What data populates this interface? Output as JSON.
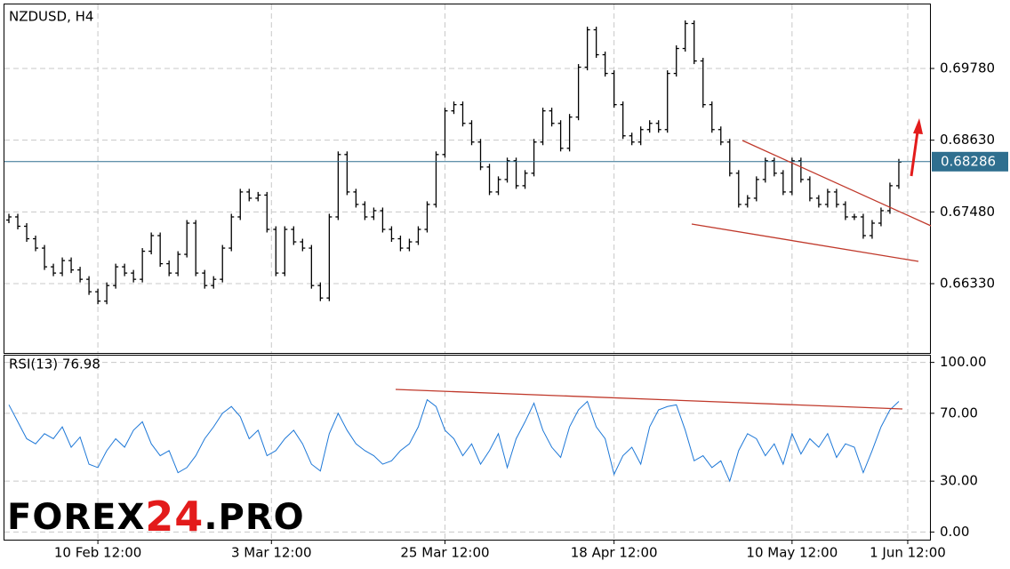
{
  "chart_data": [
    {
      "type": "ohlc",
      "title": "NZDUSD, H4",
      "color": "#000000",
      "grid": true,
      "open": [
        0.6735,
        0.674,
        0.6725,
        0.6705,
        0.669,
        0.666,
        0.665,
        0.667,
        0.6655,
        0.664,
        0.662,
        0.6605,
        0.663,
        0.666,
        0.665,
        0.664,
        0.6685,
        0.671,
        0.6665,
        0.665,
        0.668,
        0.673,
        0.665,
        0.663,
        0.664,
        0.669,
        0.674,
        0.678,
        0.677,
        0.6775,
        0.672,
        0.665,
        0.672,
        0.67,
        0.669,
        0.663,
        0.661,
        0.674,
        0.684,
        0.678,
        0.676,
        0.674,
        0.675,
        0.672,
        0.6705,
        0.669,
        0.67,
        0.672,
        0.676,
        0.684,
        0.691,
        0.692,
        0.689,
        0.686,
        0.682,
        0.678,
        0.68,
        0.683,
        0.679,
        0.681,
        0.686,
        0.691,
        0.689,
        0.685,
        0.69,
        0.698,
        0.704,
        0.7,
        0.697,
        0.692,
        0.687,
        0.686,
        0.688,
        0.689,
        0.688,
        0.697,
        0.701,
        0.705,
        0.699,
        0.692,
        0.688,
        0.686,
        0.681,
        0.676,
        0.677,
        0.68,
        0.683,
        0.681,
        0.678,
        0.683,
        0.68,
        0.677,
        0.676,
        0.678,
        0.676,
        0.674,
        0.674,
        0.671,
        0.673,
        0.675,
        0.679
      ],
      "high": [
        0.6745,
        0.6745,
        0.673,
        0.671,
        0.6695,
        0.6665,
        0.6675,
        0.6675,
        0.666,
        0.6645,
        0.6625,
        0.6635,
        0.6665,
        0.6665,
        0.6655,
        0.669,
        0.6715,
        0.6715,
        0.667,
        0.6685,
        0.6735,
        0.6735,
        0.6655,
        0.6645,
        0.6695,
        0.6745,
        0.6785,
        0.6785,
        0.678,
        0.678,
        0.6725,
        0.6725,
        0.6725,
        0.6705,
        0.6695,
        0.6635,
        0.6745,
        0.6845,
        0.6845,
        0.6785,
        0.6765,
        0.6755,
        0.6755,
        0.6725,
        0.671,
        0.6705,
        0.6725,
        0.6765,
        0.6845,
        0.6915,
        0.6925,
        0.6925,
        0.6895,
        0.6865,
        0.6825,
        0.6805,
        0.6835,
        0.6835,
        0.6815,
        0.6865,
        0.6915,
        0.6915,
        0.6895,
        0.6905,
        0.6985,
        0.7045,
        0.7045,
        0.7005,
        0.6975,
        0.6925,
        0.6875,
        0.6885,
        0.6895,
        0.6895,
        0.6975,
        0.7015,
        0.7055,
        0.7055,
        0.6995,
        0.6925,
        0.6885,
        0.6865,
        0.6815,
        0.6775,
        0.6805,
        0.6835,
        0.6835,
        0.6815,
        0.6835,
        0.6835,
        0.6805,
        0.6775,
        0.6785,
        0.6785,
        0.6765,
        0.6745,
        0.6745,
        0.6735,
        0.6755,
        0.6795,
        0.6833
      ],
      "low": [
        0.673,
        0.672,
        0.67,
        0.6685,
        0.6655,
        0.6645,
        0.6645,
        0.665,
        0.6635,
        0.6615,
        0.66,
        0.66,
        0.6625,
        0.6645,
        0.6635,
        0.6635,
        0.668,
        0.666,
        0.6645,
        0.6645,
        0.6675,
        0.6645,
        0.6625,
        0.6625,
        0.6635,
        0.6685,
        0.6735,
        0.6765,
        0.6765,
        0.6715,
        0.6645,
        0.6645,
        0.6695,
        0.6685,
        0.6625,
        0.6605,
        0.6605,
        0.6735,
        0.6775,
        0.6755,
        0.6735,
        0.6735,
        0.6715,
        0.67,
        0.6685,
        0.6685,
        0.6695,
        0.6715,
        0.6755,
        0.6835,
        0.6905,
        0.6885,
        0.6855,
        0.6815,
        0.6775,
        0.6775,
        0.6795,
        0.6785,
        0.6785,
        0.6805,
        0.6855,
        0.6885,
        0.6845,
        0.6845,
        0.6895,
        0.6975,
        0.6995,
        0.6965,
        0.6915,
        0.6865,
        0.6855,
        0.6855,
        0.6875,
        0.6875,
        0.6875,
        0.6965,
        0.7005,
        0.6985,
        0.6915,
        0.6875,
        0.6855,
        0.6805,
        0.6755,
        0.6755,
        0.6765,
        0.6795,
        0.6805,
        0.6775,
        0.6775,
        0.6795,
        0.6765,
        0.6755,
        0.6755,
        0.6755,
        0.6735,
        0.6735,
        0.6705,
        0.6705,
        0.6725,
        0.6745,
        0.6785
      ],
      "close": [
        0.674,
        0.6725,
        0.6705,
        0.669,
        0.666,
        0.665,
        0.667,
        0.6655,
        0.664,
        0.662,
        0.6605,
        0.663,
        0.666,
        0.665,
        0.664,
        0.6685,
        0.671,
        0.6665,
        0.665,
        0.668,
        0.673,
        0.665,
        0.663,
        0.664,
        0.669,
        0.674,
        0.678,
        0.677,
        0.6775,
        0.672,
        0.665,
        0.672,
        0.67,
        0.669,
        0.663,
        0.661,
        0.674,
        0.684,
        0.678,
        0.676,
        0.674,
        0.675,
        0.672,
        0.6705,
        0.669,
        0.67,
        0.672,
        0.676,
        0.684,
        0.691,
        0.692,
        0.689,
        0.686,
        0.682,
        0.678,
        0.68,
        0.683,
        0.679,
        0.681,
        0.686,
        0.691,
        0.689,
        0.685,
        0.69,
        0.698,
        0.704,
        0.7,
        0.697,
        0.692,
        0.687,
        0.686,
        0.688,
        0.689,
        0.688,
        0.697,
        0.701,
        0.705,
        0.699,
        0.692,
        0.688,
        0.686,
        0.681,
        0.676,
        0.677,
        0.68,
        0.683,
        0.681,
        0.678,
        0.683,
        0.68,
        0.677,
        0.676,
        0.678,
        0.676,
        0.674,
        0.674,
        0.671,
        0.673,
        0.675,
        0.679,
        0.6828
      ],
      "xlim": [
        -0.5,
        103.5
      ],
      "ylim": [
        0.65219,
        0.70806
      ],
      "yticks": [
        {
          "value": 0.6978,
          "label": "0.69780"
        },
        {
          "value": 0.6863,
          "label": "0.68630"
        },
        {
          "value": 0.6748,
          "label": "0.67480"
        },
        {
          "value": 0.6633,
          "label": "0.66330"
        }
      ],
      "last_price": 0.68286,
      "last_price_color": "#2f6f8f"
    },
    {
      "type": "line",
      "title": "RSI(13) 76.98",
      "color": "#1e78d7",
      "grid": true,
      "values": [
        75,
        65,
        55,
        52,
        58,
        55,
        62,
        50,
        56,
        40,
        38,
        48,
        55,
        50,
        60,
        65,
        52,
        45,
        48,
        35,
        38,
        45,
        55,
        62,
        70,
        74,
        68,
        55,
        60,
        45,
        48,
        55,
        60,
        52,
        40,
        36,
        58,
        70,
        60,
        52,
        48,
        45,
        40,
        42,
        48,
        52,
        62,
        78,
        74,
        60,
        55,
        45,
        52,
        40,
        48,
        58,
        38,
        55,
        65,
        76,
        60,
        50,
        44,
        62,
        72,
        77,
        62,
        55,
        34,
        45,
        50,
        40,
        62,
        72,
        74,
        75,
        60,
        42,
        45,
        38,
        42,
        30,
        48,
        58,
        55,
        45,
        52,
        40,
        58,
        46,
        55,
        50,
        58,
        44,
        52,
        50,
        35,
        48,
        62,
        72,
        76.98
      ],
      "xlim": [
        -0.5,
        103.5
      ],
      "ylim": [
        -4.5,
        104
      ],
      "yticks": [
        {
          "value": 100,
          "label": "100.00"
        },
        {
          "value": 70,
          "label": "70.00"
        },
        {
          "value": 30,
          "label": "30.00"
        },
        {
          "value": 0,
          "label": "0.00"
        }
      ],
      "xticks": [
        {
          "value": 10,
          "label": "10 Feb 12:00"
        },
        {
          "value": 29.5,
          "label": "3 Mar 12:00"
        },
        {
          "value": 49,
          "label": "25 Mar 12:00"
        },
        {
          "value": 68,
          "label": "18 Apr 12:00"
        },
        {
          "value": 88,
          "label": "10 May 12:00"
        },
        {
          "value": 101,
          "label": "1 Jun 12:00"
        }
      ]
    }
  ],
  "logo": [
    "FOREX",
    "24",
    ".PRO"
  ]
}
